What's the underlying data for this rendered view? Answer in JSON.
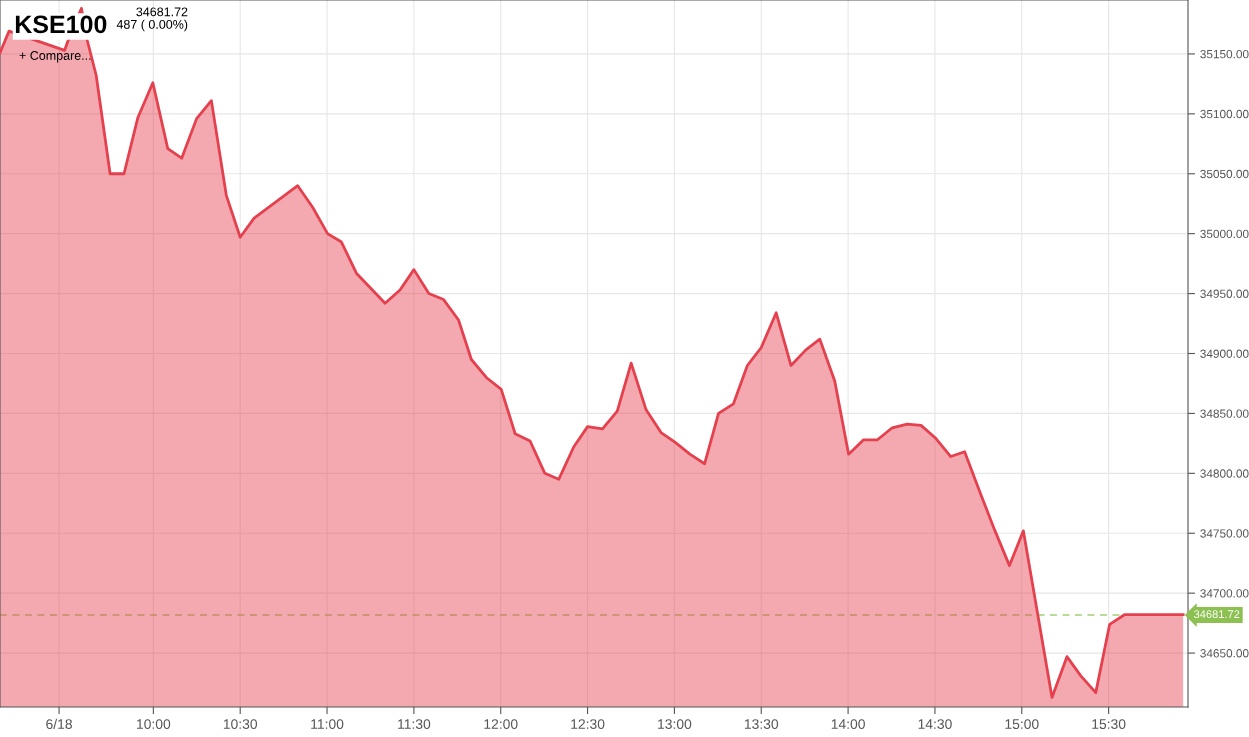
{
  "chart_data": {
    "type": "area",
    "title": "KSE100",
    "subtitle": "34681.72\n487 ( 0.00%)",
    "annotations": [
      "+ Compare..."
    ],
    "x": [
      9.117,
      9.169,
      9.489,
      9.506,
      9.586,
      9.62,
      9.671,
      9.751,
      9.831,
      9.911,
      9.997,
      10.083,
      10.163,
      10.249,
      10.334,
      10.42,
      10.5,
      10.58,
      10.831,
      10.917,
      11.003,
      11.083,
      11.169,
      11.334,
      11.42,
      11.5,
      11.586,
      11.671,
      11.757,
      11.831,
      11.917,
      12.003,
      12.083,
      12.169,
      12.254,
      12.334,
      12.42,
      12.5,
      12.586,
      12.671,
      12.751,
      12.837,
      12.923,
      13.003,
      13.089,
      13.174,
      13.254,
      13.34,
      13.42,
      13.5,
      13.586,
      13.671,
      13.757,
      13.837,
      13.923,
      14.003,
      14.089,
      14.169,
      14.254,
      14.34,
      14.42,
      14.506,
      14.591,
      14.671,
      14.757,
      14.843,
      14.929,
      15.009,
      15.174,
      15.26,
      15.34,
      15.426,
      15.506,
      15.591,
      15.929
    ],
    "series": [
      {
        "color": "#e5404e",
        "values": [
          35151,
          35169,
          35153,
          35160,
          35188,
          35161,
          35132,
          35050,
          35050,
          35097,
          35126,
          35071,
          35063,
          35096,
          35111,
          35032,
          34997,
          35013,
          35040,
          35022,
          35000,
          34993,
          34967,
          34942,
          34953,
          34970,
          34950,
          34945,
          34928,
          34895,
          34880,
          34870,
          34833,
          34827,
          34800,
          34795,
          34822,
          34839,
          34837,
          34852,
          34892,
          34853,
          34834,
          34826,
          34816,
          34808,
          34850,
          34858,
          34890,
          34905,
          34934,
          34890,
          34903,
          34912,
          34877,
          34816,
          34828,
          34828,
          34838,
          34841,
          34840,
          34829,
          34814,
          34818,
          34785,
          34753,
          34723,
          34752,
          34613,
          34647,
          34631,
          34617,
          34674,
          34682,
          34682
        ]
      }
    ],
    "xlim": [
      9.117,
      15.957
    ],
    "xticks": [
      {
        "value": 9.457,
        "label": "6/18"
      },
      {
        "value": 10,
        "label": "10:00"
      },
      {
        "value": 10.5,
        "label": "10:30"
      },
      {
        "value": 11,
        "label": "11:00"
      },
      {
        "value": 11.5,
        "label": "11:30"
      },
      {
        "value": 12,
        "label": "12:00"
      },
      {
        "value": 12.5,
        "label": "12:30"
      },
      {
        "value": 13,
        "label": "13:00"
      },
      {
        "value": 13.5,
        "label": "13:30"
      },
      {
        "value": 14,
        "label": "14:00"
      },
      {
        "value": 14.5,
        "label": "14:30"
      },
      {
        "value": 15,
        "label": "15:00"
      },
      {
        "value": 15.5,
        "label": "15:30"
      }
    ],
    "ylim": [
      34605,
      35195
    ],
    "yticks": [
      {
        "value": 34650,
        "label": "34650.00"
      },
      {
        "value": 34700,
        "label": "34700.00"
      },
      {
        "value": 34750,
        "label": "34750.00"
      },
      {
        "value": 34800,
        "label": "34800.00"
      },
      {
        "value": 34850,
        "label": "34850.00"
      },
      {
        "value": 34900,
        "label": "34900.00"
      },
      {
        "value": 34950,
        "label": "34950.00"
      },
      {
        "value": 35000,
        "label": "35000.00"
      },
      {
        "value": 35050,
        "label": "35050.00"
      },
      {
        "value": 35100,
        "label": "35100.00"
      },
      {
        "value": 35150,
        "label": "35150.00"
      }
    ],
    "ref_lines": [
      {
        "axis": "y",
        "value": 34681.72,
        "label": "34681.72",
        "color": "#8cc152",
        "line_style": "dashed"
      }
    ],
    "grid": true,
    "legend": false
  }
}
